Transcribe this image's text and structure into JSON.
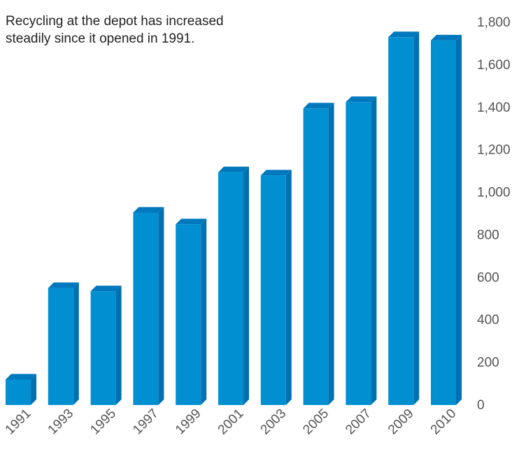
{
  "chart_data": {
    "type": "bar",
    "annotation_lines": [
      "Recycling at the depot has increased",
      "steadily since it opened in 1991."
    ],
    "title": "",
    "xlabel": "",
    "ylabel": "",
    "categories": [
      "1991",
      "1993",
      "1995",
      "1997",
      "1999",
      "2001",
      "2003",
      "2005",
      "2007",
      "2009",
      "2010"
    ],
    "values": [
      120,
      550,
      535,
      905,
      850,
      1095,
      1080,
      1395,
      1425,
      1730,
      1715
    ],
    "ylim": [
      0,
      1800
    ],
    "yticks": [
      0,
      200,
      400,
      600,
      800,
      1000,
      1200,
      1400,
      1600,
      1800
    ],
    "ytick_labels": [
      "0",
      "200",
      "400",
      "600",
      "800",
      "1,000",
      "1,200",
      "1,400",
      "1,600",
      "1,800"
    ],
    "y_axis_side": "right",
    "grid": false,
    "legend": "none",
    "colors": {
      "bar_front": "#0090d1",
      "bar_top": "#0078bd",
      "bar_side": "#0070b0",
      "tick_text": "#555555"
    }
  }
}
